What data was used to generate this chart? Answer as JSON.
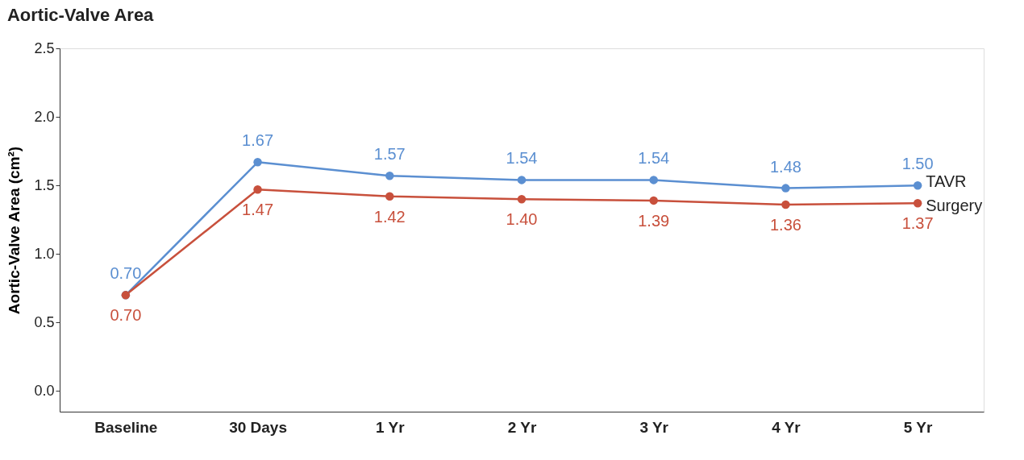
{
  "chart_data": {
    "type": "line",
    "title": "Aortic-Valve Area",
    "ylabel": "Aortic-Valve Area (cm²)",
    "categories": [
      "Baseline",
      "30 Days",
      "1 Yr",
      "2 Yr",
      "3 Yr",
      "4 Yr",
      "5 Yr"
    ],
    "series": [
      {
        "name": "TAVR",
        "color": "#5b8fd1",
        "values": [
          0.7,
          1.67,
          1.57,
          1.54,
          1.54,
          1.48,
          1.5
        ],
        "value_labels": [
          "0.70",
          "1.67",
          "1.57",
          "1.54",
          "1.54",
          "1.48",
          "1.50"
        ]
      },
      {
        "name": "Surgery",
        "color": "#c8503c",
        "values": [
          0.7,
          1.47,
          1.42,
          1.4,
          1.39,
          1.36,
          1.37
        ],
        "value_labels": [
          "0.70",
          "1.47",
          "1.42",
          "1.40",
          "1.39",
          "1.36",
          "1.37"
        ]
      }
    ],
    "ylim": [
      -0.15,
      2.5
    ],
    "yticks": [
      {
        "value": 0,
        "label": "0.0"
      },
      {
        "value": 0.5,
        "label": "0.5"
      },
      {
        "value": 1,
        "label": "1.0"
      },
      {
        "value": 1.5,
        "label": "1.5"
      },
      {
        "value": 2,
        "label": "2.0"
      },
      {
        "value": 2.5,
        "label": "2.5"
      }
    ],
    "marker": "circle",
    "line_style": "solid",
    "grid": false,
    "legend": false
  }
}
